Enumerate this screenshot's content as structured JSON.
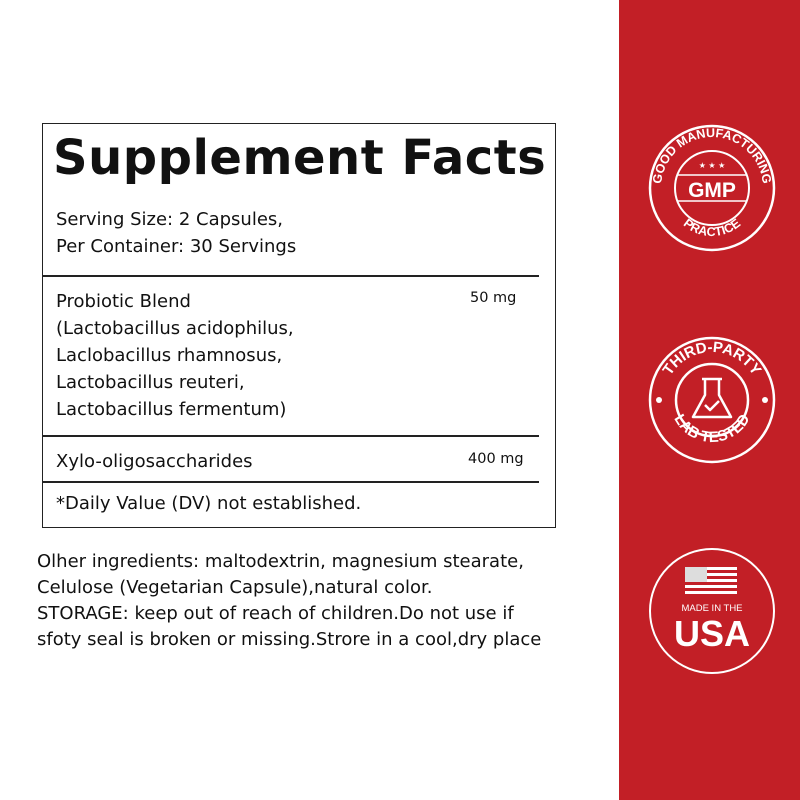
{
  "facts": {
    "title": "Supplement Facts",
    "serving_size": "Serving Size: 2 Capsules,",
    "per_container": "Per Container: 30 Servings",
    "rows": [
      {
        "name_lines": [
          "Probiotic Blend",
          "(Lactobacillus acidophilus,",
          "Laclobacillus rhamnosus,",
          "Lactobacillus reuteri,",
          "Lactobacillus fermentum)"
        ],
        "amount": "50 mg"
      },
      {
        "name_lines": [
          "Xylo-oligosaccharides"
        ],
        "amount": "400 mg"
      }
    ],
    "footnote": "*Daily Value (DV) not established."
  },
  "other_info": [
    "Olher ingredients: maltodextrin, magnesium stearate,",
    "Celulose (Vegetarian Capsule),natural color.",
    "STORAGE: keep out of reach of children.Do not use if",
    "sfoty seal is broken or missing.Strore in a cool,dry place"
  ],
  "badges": {
    "panel_color": "#c21f26",
    "gmp": {
      "top": "GOOD MANUFACTURING",
      "center": "GMP",
      "bottom": "PRACTICE",
      "icon": "stars-icon"
    },
    "lab": {
      "top": "THIRD-PARTY",
      "bottom": "LAB TESTED",
      "icon": "flask-check-icon"
    },
    "usa": {
      "small": "MADE IN THE",
      "big": "USA",
      "icon": "us-flag-icon"
    }
  }
}
